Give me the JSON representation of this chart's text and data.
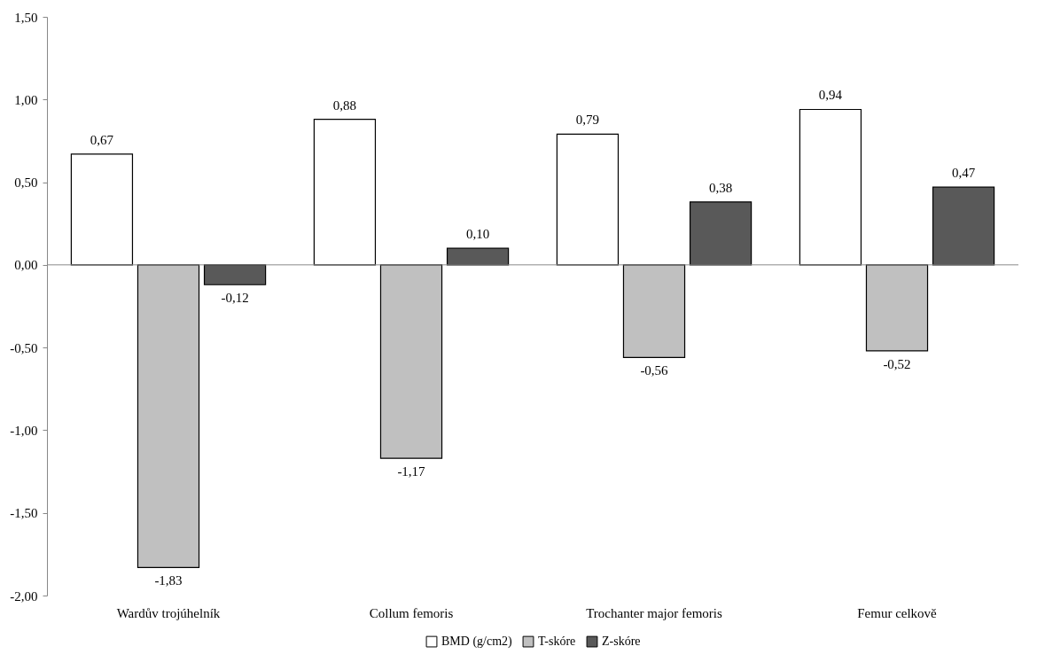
{
  "chart_data": {
    "type": "bar",
    "categories": [
      "Wardův trojúhelník",
      "Collum femoris",
      "Trochanter major femoris",
      "Femur celkově"
    ],
    "series": [
      {
        "name": "BMD (g/cm2)",
        "color": "#ffffff",
        "values": [
          0.67,
          0.88,
          0.79,
          0.94
        ],
        "value_labels": [
          "0,67",
          "0,88",
          "0,79",
          "0,94"
        ]
      },
      {
        "name": "T-skóre",
        "color": "#c0c0c0",
        "values": [
          -1.83,
          -1.17,
          -0.56,
          -0.52
        ],
        "value_labels": [
          "-1,83",
          "-1,17",
          "-0,56",
          "-0,52"
        ]
      },
      {
        "name": "Z-skóre",
        "color": "#595959",
        "values": [
          -0.12,
          0.1,
          0.38,
          0.47
        ],
        "value_labels": [
          "-0,12",
          "0,10",
          "0,38",
          "0,47"
        ]
      }
    ],
    "ylim": [
      -2,
      1.5
    ],
    "yticks": [
      {
        "value": -2,
        "label": "-2,00"
      },
      {
        "value": -1.5,
        "label": "-1,50"
      },
      {
        "value": -1,
        "label": "-1,00"
      },
      {
        "value": -0.5,
        "label": "-0,50"
      },
      {
        "value": 0,
        "label": "0,00"
      },
      {
        "value": 0.5,
        "label": "0,50"
      },
      {
        "value": 1,
        "label": "1,00"
      },
      {
        "value": 1.5,
        "label": "1,50"
      }
    ],
    "ref_lines": [
      {
        "axis": "y",
        "value": 0
      }
    ],
    "grid": false,
    "legend": "bottom"
  }
}
